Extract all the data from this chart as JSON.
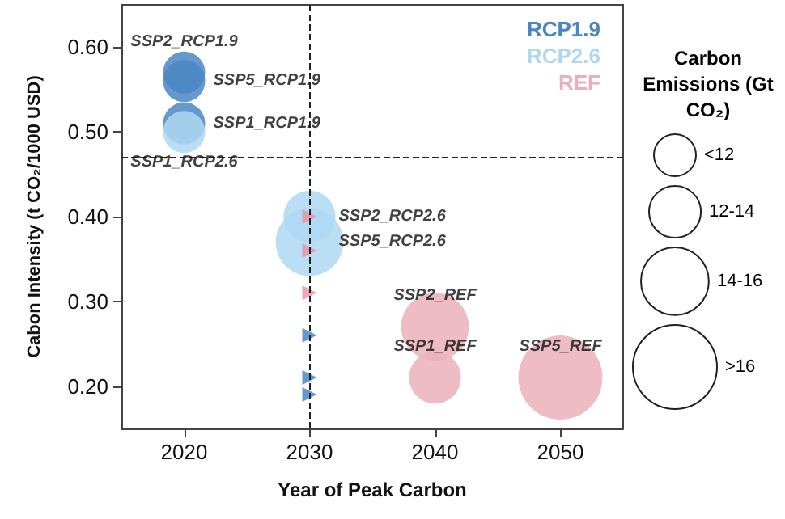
{
  "chart_data": {
    "type": "bubble",
    "xlabel": "Year of Peak Carbon",
    "ylabel": "Cabon Intensity (t CO₂/1000 USD)",
    "legend_title": "Carbon Emissions (Gt CO₂)",
    "xlim": [
      2015,
      2055
    ],
    "xticks": [
      2020,
      2030,
      2040,
      2050
    ],
    "ylim": [
      0.15,
      0.65
    ],
    "yticks": [
      {
        "value": 0.2,
        "label": "0.20"
      },
      {
        "value": 0.3,
        "label": "0.30"
      },
      {
        "value": 0.4,
        "label": "0.40"
      },
      {
        "value": 0.5,
        "label": "0.50"
      },
      {
        "value": 0.6,
        "label": "0.60"
      }
    ],
    "size_legend": [
      {
        "value": 0.25,
        "label": "<12"
      },
      {
        "value": 0.38,
        "label": "12-14"
      },
      {
        "value": 0.65,
        "label": "14-16"
      },
      {
        "value": 1,
        "label": ">16"
      }
    ],
    "series": [
      {
        "name": "RCP1.9",
        "color": "#4a86c4",
        "x": [
          2020,
          2020,
          2020
        ],
        "values": [
          0.57,
          0.56,
          0.51
        ],
        "sizes": [
          0.25,
          0.25,
          0.25
        ]
      },
      {
        "name": "RCP2.6",
        "color": "#aed8f2",
        "x": [
          2020,
          2030,
          2030
        ],
        "values": [
          0.5,
          0.4,
          0.37
        ],
        "sizes": [
          0.25,
          0.38,
          0.65
        ]
      },
      {
        "name": "REF",
        "color": "#eab0ba",
        "x": [
          2040,
          2040,
          2050
        ],
        "values": [
          0.27,
          0.21,
          0.21
        ],
        "sizes": [
          0.65,
          0.38,
          1
        ]
      },
      {
        "type": "scatter",
        "marker": "triangle",
        "color": "#e8909e",
        "x": [
          2030,
          2030,
          2030
        ],
        "values": [
          0.4,
          0.36,
          0.31
        ]
      },
      {
        "type": "scatter",
        "marker": "triangle",
        "color": "#3d7fc0",
        "x": [
          2030,
          2030,
          2030
        ],
        "values": [
          0.26,
          0.21,
          0.19
        ]
      }
    ],
    "ref_lines": [
      {
        "axis": "x",
        "value": 2030,
        "line_style": "dashed"
      },
      {
        "axis": "y",
        "value": 0.47,
        "line_style": "dashed"
      }
    ],
    "annotations": [
      {
        "text": "SSP2_RCP1.9",
        "x": 2020,
        "y": 0.57
      },
      {
        "text": "SSP5_RCP1.9",
        "x": 2020,
        "y": 0.56
      },
      {
        "text": "SSP1_RCP1.9",
        "x": 2020,
        "y": 0.51
      },
      {
        "text": "SSP1_RCP2.6",
        "x": 2020,
        "y": 0.5
      },
      {
        "text": "SSP2_RCP2.6",
        "x": 2030,
        "y": 0.4
      },
      {
        "text": "SSP5_RCP2.6",
        "x": 2030,
        "y": 0.37
      },
      {
        "text": "SSP2_REF",
        "x": 2040,
        "y": 0.27
      },
      {
        "text": "SSP1_REF",
        "x": 2040,
        "y": 0.21
      },
      {
        "text": "SSP5_REF",
        "x": 2050,
        "y": 0.21
      }
    ],
    "legend": "top right",
    "grid": false
  }
}
